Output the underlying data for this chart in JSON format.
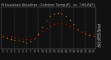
{
  "title": "Milwaukee Weather  Outdoor Temp(F)  vs  THSW(F)",
  "hours": [
    0,
    1,
    2,
    3,
    4,
    5,
    6,
    7,
    8,
    9,
    10,
    11,
    12,
    13,
    14,
    15,
    16,
    17,
    18,
    19,
    20,
    21,
    22,
    23
  ],
  "hour_labels": [
    "0",
    "1",
    "2",
    "3",
    "4",
    "5",
    "6",
    "7",
    "8",
    "9",
    "10",
    "11",
    "12",
    "13",
    "14",
    "15",
    "16",
    "17",
    "18",
    "19",
    "20",
    "21",
    "22",
    "23"
  ],
  "temp": [
    64,
    62,
    61,
    60,
    59,
    58,
    57,
    57,
    59,
    63,
    68,
    72,
    75,
    77,
    78,
    78,
    77,
    75,
    72,
    69,
    67,
    66,
    65,
    64
  ],
  "thsw": [
    61,
    59,
    57,
    56,
    55,
    54,
    53,
    54,
    58,
    65,
    74,
    82,
    88,
    91,
    92,
    91,
    88,
    83,
    77,
    71,
    67,
    65,
    63,
    62
  ],
  "temp_color": "#dd0000",
  "thsw_color": "#ff8800",
  "black_color": "#000000",
  "background_color": "#111111",
  "grid_color": "#888888",
  "text_color": "#aaaaaa",
  "ylim": [
    44,
    100
  ],
  "ytick_values": [
    76,
    72,
    68,
    64,
    60,
    56,
    52,
    48
  ],
  "ylabel_fontsize": 3.5,
  "title_fontsize": 3.8,
  "tick_fontsize": 3.0,
  "marker_size": 1.2,
  "dashed_hours": [
    3,
    6,
    9,
    12,
    15,
    18,
    21
  ]
}
